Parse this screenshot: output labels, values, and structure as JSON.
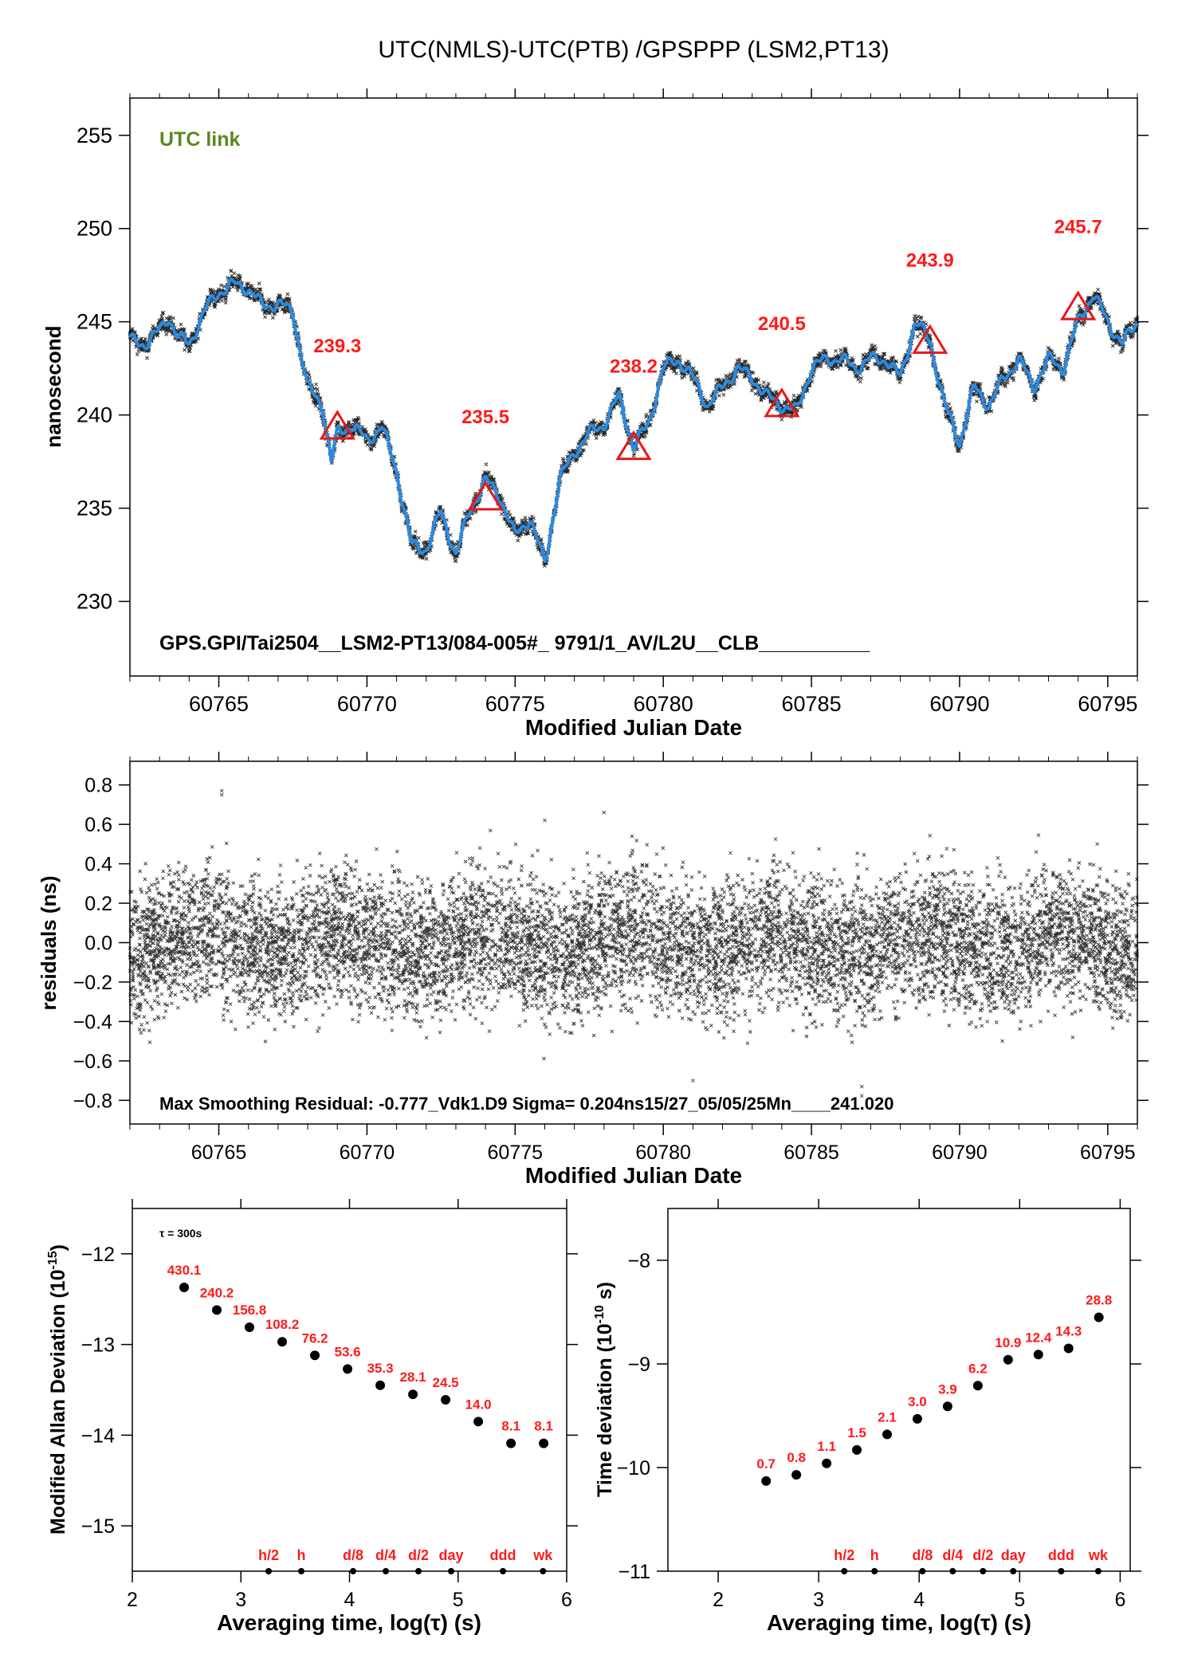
{
  "title": "UTC(NMLS)-UTC(PTB)  /GPSPPP  (LSM2,PT13)",
  "colors": {
    "fit": "#2a8ae0",
    "points": "#000000",
    "marker": "#e81818",
    "label": "#ff1a1a",
    "link": "#5a8a1e"
  },
  "chart_data": [
    {
      "type": "line",
      "id": "time-series",
      "tag": "UTC link",
      "info": "GPS.GPI/Tai2504__LSM2-PT13/084-005#_  9791/1_AV/L2U__CLB__________",
      "xlabel": "Modified Julian Date",
      "ylabel": "nanosecond",
      "xlim": [
        60762,
        60796
      ],
      "ylim": [
        226,
        257
      ],
      "xticks": [
        60765,
        60770,
        60775,
        60780,
        60785,
        60790,
        60795
      ],
      "yticks": [
        230,
        235,
        240,
        245,
        250,
        255
      ],
      "series": [
        {
          "x": [
            60762,
            60762.5,
            60763,
            60763.3,
            60763.6,
            60764,
            60764.5,
            60764.8,
            60765,
            60765.5,
            60766,
            60766.5,
            60767,
            60767.5,
            60768,
            60768.5,
            60768.8,
            60769,
            60769.5,
            60770,
            60770.5,
            60771,
            60771.5,
            60772,
            60772.5,
            60773,
            60773.5,
            60774,
            60774.5,
            60775,
            60775.5,
            60776,
            60776.5,
            60777,
            60777.5,
            60778,
            60778.5,
            60779,
            60779.5,
            60780,
            60780.5,
            60781,
            60781.5,
            60782,
            60782.5,
            60783,
            60783.5,
            60784,
            60784.5,
            60785,
            60785.5,
            60786,
            60786.5,
            60787,
            60787.5,
            60788,
            60788.5,
            60789,
            60789.5,
            60790,
            60790.5,
            60791,
            60791.5,
            60792,
            60792.5,
            60793,
            60793.5,
            60794,
            60794.5,
            60795,
            60795.5,
            60796
          ],
          "values": [
            244,
            243.8,
            244.5,
            245.3,
            244.2,
            243.8,
            245.5,
            246.2,
            246.6,
            247.0,
            246.8,
            245.8,
            246.0,
            245.5,
            241.5,
            240.5,
            237.5,
            239.0,
            239.5,
            238.6,
            239.4,
            237.0,
            233.0,
            232.8,
            234.8,
            232.5,
            235.0,
            236.5,
            235.6,
            233.5,
            234.5,
            232.0,
            236.5,
            238.0,
            239.0,
            239.5,
            241.0,
            238.3,
            239.5,
            242.5,
            243.0,
            242.0,
            240.5,
            241.5,
            242.5,
            242.0,
            241.0,
            240.5,
            240.2,
            242.5,
            243.0,
            243.0,
            242.5,
            243.0,
            243.0,
            242.0,
            245.0,
            244.0,
            240.5,
            238.5,
            241.5,
            240.5,
            242.0,
            243.0,
            241.5,
            243.0,
            242.5,
            245.0,
            246.5,
            245.0,
            243.8,
            245.0
          ]
        }
      ],
      "markers": [
        {
          "x": 60769,
          "y": 239.3,
          "label": "239.3"
        },
        {
          "x": 60774,
          "y": 235.5,
          "label": "235.5"
        },
        {
          "x": 60779,
          "y": 238.2,
          "label": "238.2"
        },
        {
          "x": 60784,
          "y": 240.5,
          "label": "240.5"
        },
        {
          "x": 60789,
          "y": 243.9,
          "label": "243.9"
        },
        {
          "x": 60794,
          "y": 245.7,
          "label": "245.7"
        }
      ]
    },
    {
      "type": "scatter",
      "id": "residuals",
      "info": "Max Smoothing Residual: -0.777_Vdk1.D9  Sigma= 0.204ns15/27_05/05/25Mn____241.020",
      "xlabel": "Modified Julian Date",
      "ylabel": "residuals (ns)",
      "xlim": [
        60762,
        60796
      ],
      "ylim": [
        -0.92,
        0.92
      ],
      "xticks": [
        60765,
        60770,
        60775,
        60780,
        60785,
        60790,
        60795
      ],
      "yticks": [
        -0.8,
        -0.6,
        -0.4,
        -0.2,
        0.0,
        0.2,
        0.4,
        0.6,
        0.8
      ],
      "sigma": 0.204,
      "max_residual": -0.777
    },
    {
      "type": "scatter",
      "id": "mdev",
      "note": "τ = 300s",
      "xlabel": "Averaging time, log(τ) (s)",
      "ylabel": "Modified Allan Deviation (10",
      "ylabel_sup": "-15",
      "ylabel_end": ")",
      "xlim": [
        2,
        6
      ],
      "ylim": [
        -15.5,
        -11.5
      ],
      "xticks": [
        2,
        3,
        4,
        5,
        6
      ],
      "yticks": [
        -12,
        -13,
        -14,
        -15
      ],
      "x": [
        2.477,
        2.778,
        3.079,
        3.38,
        3.681,
        3.982,
        4.283,
        4.584,
        4.885,
        5.186,
        5.487,
        5.788
      ],
      "values": [
        -12.37,
        -12.62,
        -12.81,
        -12.97,
        -13.12,
        -13.27,
        -13.45,
        -13.55,
        -13.61,
        -13.85,
        -14.09,
        -14.09
      ],
      "labels": [
        "430.1",
        "240.2",
        "156.8",
        "108.2",
        "76.2",
        "53.6",
        "35.3",
        "28.1",
        "24.5",
        "14.0",
        "8.1",
        "8.1"
      ],
      "scale_marks": [
        {
          "x": 3.255,
          "label": "h/2"
        },
        {
          "x": 3.556,
          "label": "h"
        },
        {
          "x": 4.033,
          "label": "d/8"
        },
        {
          "x": 4.334,
          "label": "d/4"
        },
        {
          "x": 4.635,
          "label": "d/2"
        },
        {
          "x": 4.936,
          "label": "day"
        },
        {
          "x": 5.413,
          "label": "ddd"
        },
        {
          "x": 5.782,
          "label": "wk"
        }
      ]
    },
    {
      "type": "scatter",
      "id": "tdev",
      "xlabel": "Averaging time, log(τ) (s)",
      "ylabel": "Time deviation (10",
      "ylabel_sup": "-10",
      "ylabel_end": " s)",
      "xlim": [
        1.5,
        6.1
      ],
      "ylim": [
        -11,
        -7.5
      ],
      "xticks": [
        2,
        3,
        4,
        5,
        6
      ],
      "yticks": [
        -8,
        -9,
        -10,
        -11
      ],
      "x": [
        2.477,
        2.778,
        3.079,
        3.38,
        3.681,
        3.982,
        4.283,
        4.584,
        4.885,
        5.186,
        5.487,
        5.788
      ],
      "values": [
        -10.13,
        -10.07,
        -9.96,
        -9.83,
        -9.68,
        -9.53,
        -9.41,
        -9.21,
        -8.96,
        -8.91,
        -8.85,
        -8.55
      ],
      "labels": [
        "0.7",
        "0.8",
        "1.1",
        "1.5",
        "2.1",
        "3.0",
        "3.9",
        "6.2",
        "10.9",
        "12.4",
        "14.3",
        "28.8"
      ],
      "scale_marks": [
        {
          "x": 3.255,
          "label": "h/2"
        },
        {
          "x": 3.556,
          "label": "h"
        },
        {
          "x": 4.033,
          "label": "d/8"
        },
        {
          "x": 4.334,
          "label": "d/4"
        },
        {
          "x": 4.635,
          "label": "d/2"
        },
        {
          "x": 4.936,
          "label": "day"
        },
        {
          "x": 5.413,
          "label": "ddd"
        },
        {
          "x": 5.782,
          "label": "wk"
        }
      ]
    }
  ]
}
